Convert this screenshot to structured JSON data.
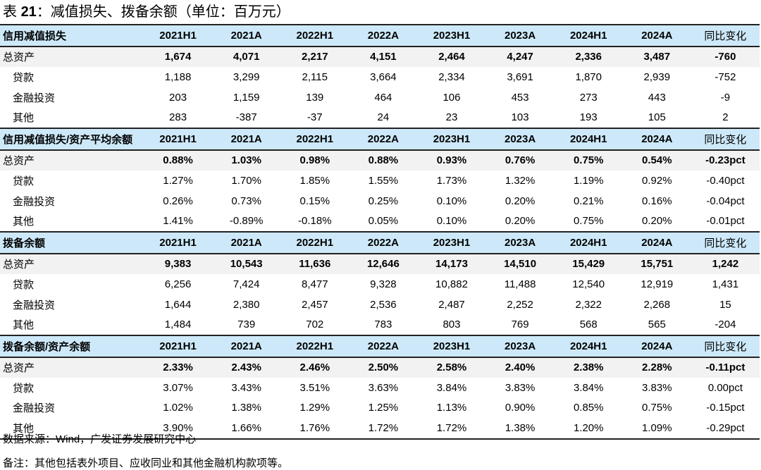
{
  "title_prefix": "表 ",
  "title_num": "21",
  "title_text": "：减值损失、拨备余额（单位：百万元）",
  "columns": [
    "2021H1",
    "2021A",
    "2022H1",
    "2022A",
    "2023H1",
    "2023A",
    "2024H1",
    "2024A",
    "同比变化"
  ],
  "sections": [
    {
      "name": "信用减值损失",
      "rows": [
        {
          "label": "总资产",
          "values": [
            "1,674",
            "4,071",
            "2,217",
            "4,151",
            "2,464",
            "4,247",
            "2,336",
            "3,487",
            "-760"
          ]
        },
        {
          "label": "贷款",
          "values": [
            "1,188",
            "3,299",
            "2,115",
            "3,664",
            "2,334",
            "3,691",
            "1,870",
            "2,939",
            "-752"
          ]
        },
        {
          "label": "金融投资",
          "values": [
            "203",
            "1,159",
            "139",
            "464",
            "106",
            "453",
            "273",
            "443",
            "-9"
          ]
        },
        {
          "label": "其他",
          "values": [
            "283",
            "-387",
            "-37",
            "24",
            "23",
            "103",
            "193",
            "105",
            "2"
          ]
        }
      ]
    },
    {
      "name": "信用减值损失/资产平均余额",
      "rows": [
        {
          "label": "总资产",
          "values": [
            "0.88%",
            "1.03%",
            "0.98%",
            "0.88%",
            "0.93%",
            "0.76%",
            "0.75%",
            "0.54%",
            "-0.23pct"
          ]
        },
        {
          "label": "贷款",
          "values": [
            "1.27%",
            "1.70%",
            "1.85%",
            "1.55%",
            "1.73%",
            "1.32%",
            "1.19%",
            "0.92%",
            "-0.40pct"
          ]
        },
        {
          "label": "金融投资",
          "values": [
            "0.26%",
            "0.73%",
            "0.15%",
            "0.25%",
            "0.10%",
            "0.20%",
            "0.21%",
            "0.16%",
            "-0.04pct"
          ]
        },
        {
          "label": "其他",
          "values": [
            "1.41%",
            "-0.89%",
            "-0.18%",
            "0.05%",
            "0.10%",
            "0.20%",
            "0.75%",
            "0.20%",
            "-0.01pct"
          ]
        }
      ]
    },
    {
      "name": "拨备余额",
      "rows": [
        {
          "label": "总资产",
          "values": [
            "9,383",
            "10,543",
            "11,636",
            "12,646",
            "14,173",
            "14,510",
            "15,429",
            "15,751",
            "1,242"
          ]
        },
        {
          "label": "贷款",
          "values": [
            "6,256",
            "7,424",
            "8,477",
            "9,328",
            "10,882",
            "11,488",
            "12,540",
            "12,919",
            "1,431"
          ]
        },
        {
          "label": "金融投资",
          "values": [
            "1,644",
            "2,380",
            "2,457",
            "2,536",
            "2,487",
            "2,252",
            "2,322",
            "2,268",
            "15"
          ]
        },
        {
          "label": "其他",
          "values": [
            "1,484",
            "739",
            "702",
            "783",
            "803",
            "769",
            "568",
            "565",
            "-204"
          ]
        }
      ]
    },
    {
      "name": "拨备余额/资产余额",
      "rows": [
        {
          "label": "总资产",
          "values": [
            "2.33%",
            "2.43%",
            "2.46%",
            "2.50%",
            "2.58%",
            "2.40%",
            "2.38%",
            "2.28%",
            "-0.11pct"
          ]
        },
        {
          "label": "贷款",
          "values": [
            "3.07%",
            "3.43%",
            "3.51%",
            "3.63%",
            "3.84%",
            "3.83%",
            "3.84%",
            "3.83%",
            "0.00pct"
          ]
        },
        {
          "label": "金融投资",
          "values": [
            "1.02%",
            "1.38%",
            "1.29%",
            "1.25%",
            "1.13%",
            "0.90%",
            "0.85%",
            "0.75%",
            "-0.15pct"
          ]
        },
        {
          "label": "其他",
          "values": [
            "3.90%",
            "1.66%",
            "1.76%",
            "1.72%",
            "1.72%",
            "1.38%",
            "1.20%",
            "1.09%",
            "-0.29pct"
          ]
        }
      ]
    }
  ],
  "source": "数据来源：Wind，广发证券发展研究中心",
  "note": "备注：其他包括表外项目、应收同业和其他金融机构款项等。",
  "colors": {
    "header_bg": "#cde9f9",
    "total_bg": "#f2f2f2",
    "rule": "#222222"
  }
}
